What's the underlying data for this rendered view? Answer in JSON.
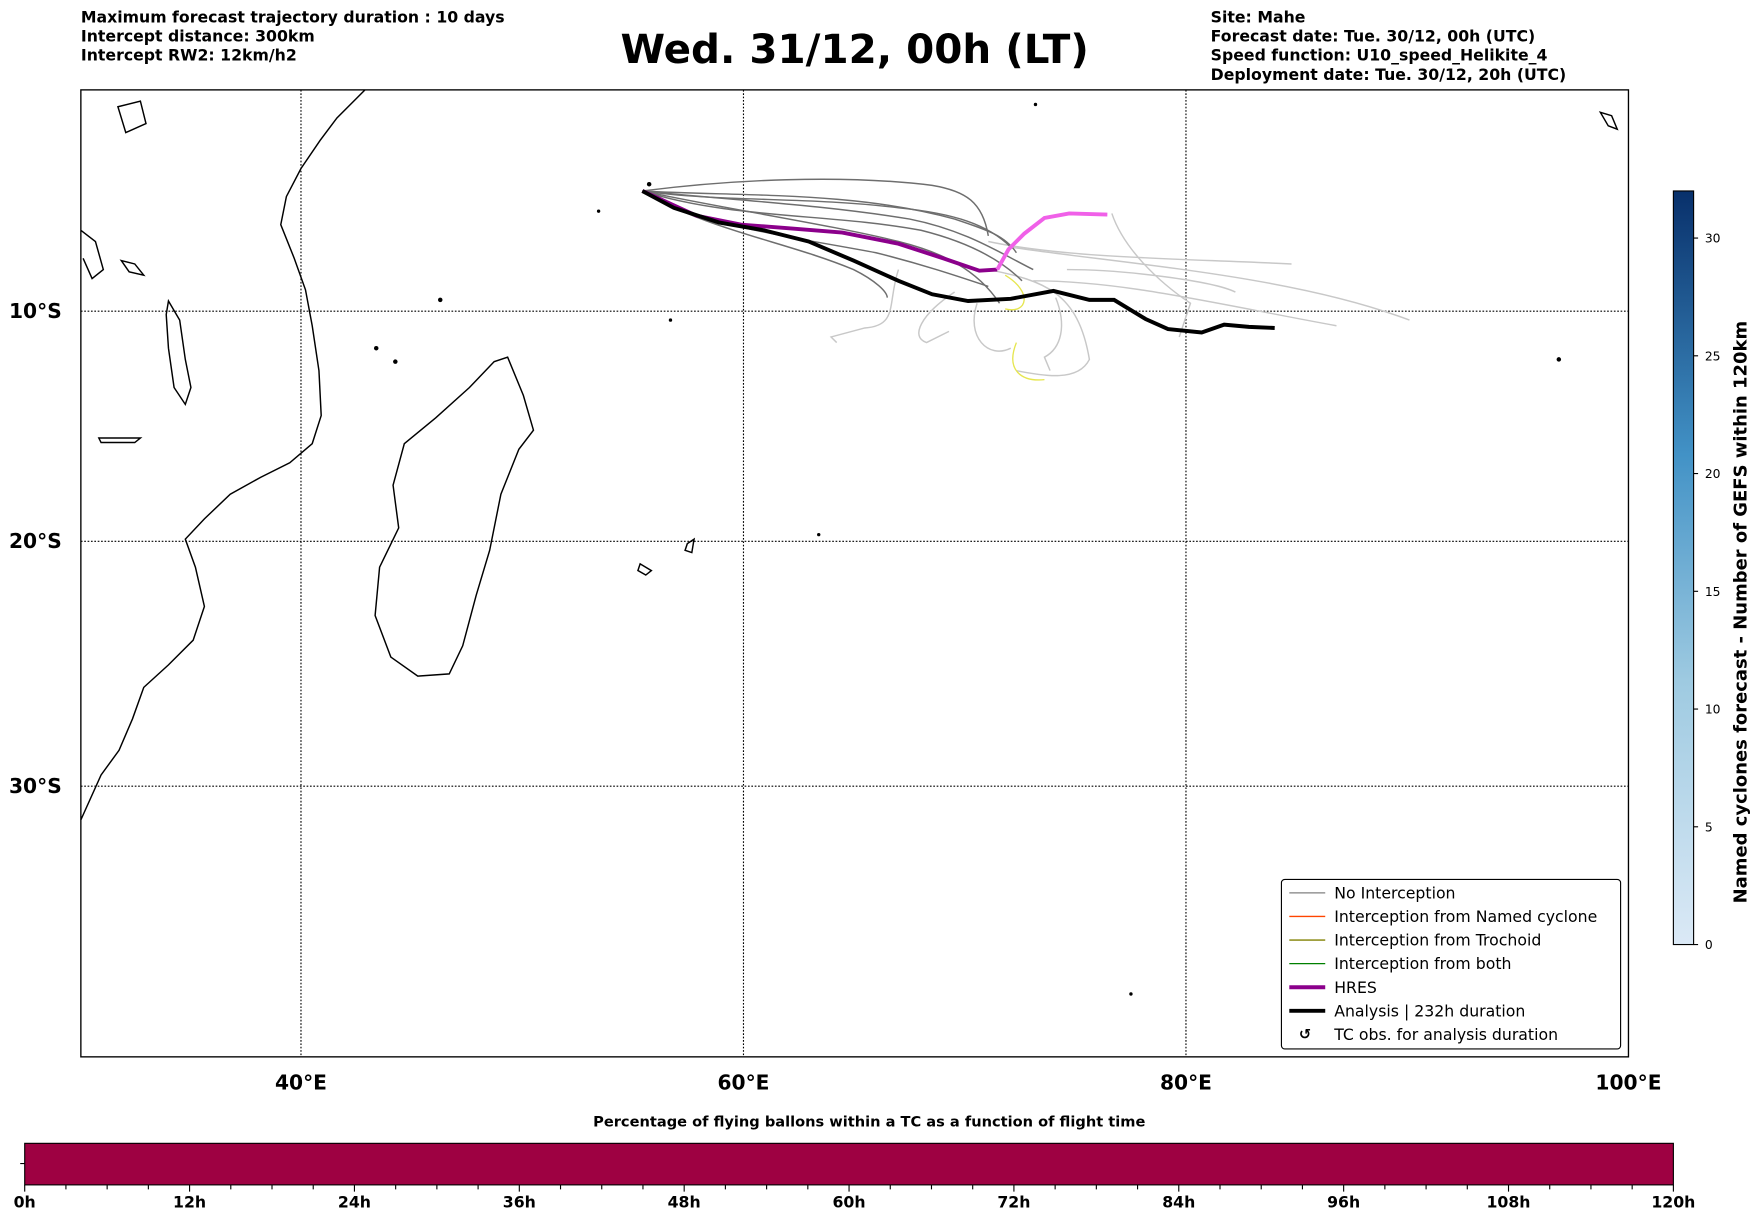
{
  "header": {
    "left_lines": [
      "Maximum forecast trajectory duration : 10 days",
      "Intercept distance: 300km",
      "Intercept RW2: 12km/h2"
    ],
    "title": "Wed. 31/12, 00h (LT)",
    "right_lines": [
      "Site: Mahe",
      "Forecast date: Tue. 30/12, 00h (UTC)",
      "Speed function: U10_speed_Helikite_4",
      "Deployment date: Tue. 30/12, 20h (UTC)"
    ]
  },
  "map": {
    "lon_labels": [
      "40°E",
      "60°E",
      "80°E",
      "100°E"
    ],
    "lat_labels": [
      "10°S",
      "20°S",
      "30°S"
    ]
  },
  "legend": {
    "items": [
      {
        "label": "No Interception",
        "color": "#808080"
      },
      {
        "label": "Interception from Named cyclone",
        "color": "#ff4500"
      },
      {
        "label": "Interception from Trochoid",
        "color": "#808000"
      },
      {
        "label": "Interception from both",
        "color": "#008000"
      },
      {
        "label": "HRES",
        "color": "#8b008b"
      },
      {
        "label": "Analysis | 232h duration",
        "color": "#000000"
      },
      {
        "label": "TC obs. for analysis duration",
        "icon": "cyclone-icon"
      }
    ]
  },
  "chart_data": [
    {
      "type": "colorbar",
      "title": "Named cyclones forecast - Number of GEFS within 120km",
      "range": [
        0,
        32
      ],
      "ticks": [
        "0",
        "5",
        "10",
        "15",
        "20",
        "25",
        "30"
      ],
      "colormap": "Blues"
    },
    {
      "type": "bar",
      "title": "Percentage of flying ballons within a TC as a function of flight time",
      "ticks": [
        "0h",
        "12h",
        "24h",
        "36h",
        "48h",
        "60h",
        "72h",
        "84h",
        "96h",
        "108h",
        "120h"
      ],
      "range_hours": [
        0,
        120
      ],
      "fill_color": "#9e0142"
    }
  ]
}
